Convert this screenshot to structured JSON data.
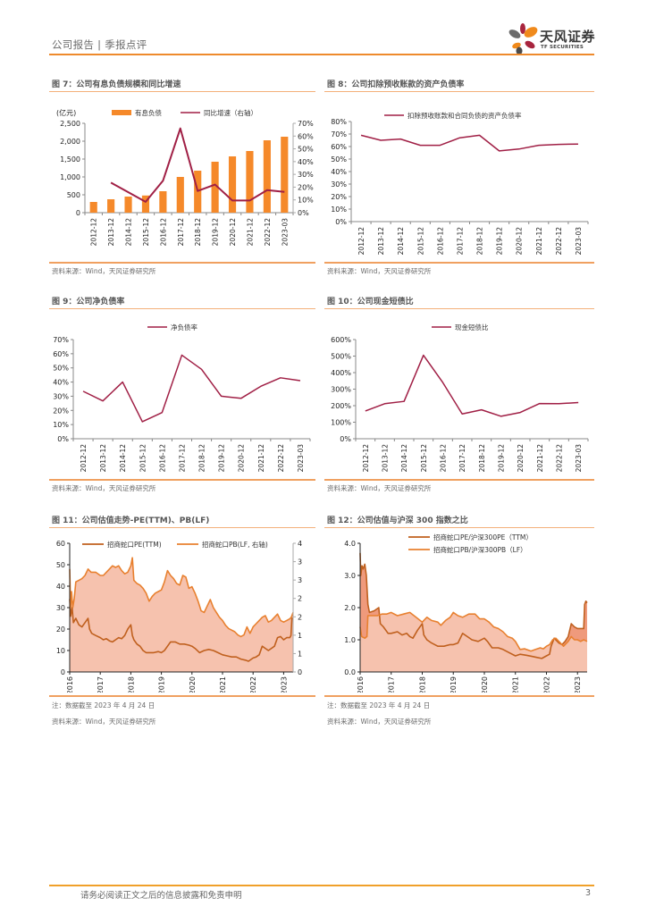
{
  "header": {
    "title": "公司报告 | 季报点评",
    "logo_cn": "天风证券",
    "logo_en": "TF SECURITIES"
  },
  "colors": {
    "accent_orange": "#ee8a2c",
    "bar_orange": "#f5892a",
    "line_crimson": "#a01f45",
    "pe_brown": "#c0601e",
    "pb_orange": "#e8802f",
    "fill_pink": "#f6c2ae",
    "fill_pink_dark": "#ef9a7c"
  },
  "figures": [
    {
      "id": "fig7",
      "title": "图 7：公司有息负债规模和同比增速",
      "source": "资料来源：Wind，天风证券研究所"
    },
    {
      "id": "fig8",
      "title": "图 8：公司扣除预收账款的资产负债率",
      "source": "资料来源：Wind，天风证券研究所"
    },
    {
      "id": "fig9",
      "title": "图 9：公司净负债率",
      "source": "资料来源：Wind，天风证券研究所"
    },
    {
      "id": "fig10",
      "title": "图 10：公司现金短债比",
      "source": "资料来源：Wind，天风证券研究所"
    },
    {
      "id": "fig11",
      "title": "图 11：公司估值走势-PE(TTM)、PB(LF)",
      "note": "注：数据截至 2023 年 4 月 24 日",
      "source": "资料来源：Wind，天风证券研究所"
    },
    {
      "id": "fig12",
      "title": "图 12：公司估值与沪深 300 指数之比",
      "note": "注：数据截至 2023 年 4 月 24 日",
      "source": "资料来源：Wind，天风证券研究所"
    }
  ],
  "footer": {
    "disclaimer": "请务必阅读正文之后的信息披露和免责申明",
    "page_number": "3"
  },
  "chart_data": [
    {
      "id": "fig7",
      "type": "bar",
      "title": "公司有息负债规模和同比增速",
      "ylabel": "(亿元)",
      "categories": [
        "2012-12",
        "2013-12",
        "2014-12",
        "2015-12",
        "2016-12",
        "2017-12",
        "2018-12",
        "2019-12",
        "2020-12",
        "2021-12",
        "2022-12",
        "2023-03"
      ],
      "series": [
        {
          "name": "有息负债",
          "type": "bar",
          "axis": "left",
          "values": [
            300,
            375,
            450,
            480,
            600,
            1000,
            1175,
            1425,
            1575,
            1725,
            2025,
            2125
          ]
        },
        {
          "name": "同比增速（右轴）",
          "type": "line",
          "axis": "right",
          "values": [
            null,
            23.5,
            16,
            8.5,
            25,
            66,
            17,
            22,
            9.5,
            9.5,
            17.7,
            16.3
          ]
        }
      ],
      "ylim": [
        0,
        2500
      ],
      "yticks": [
        "0",
        "500",
        "1,000",
        "1,500",
        "2,000",
        "2,500"
      ],
      "y2lim": [
        0,
        70
      ],
      "y2ticks": [
        "0%",
        "10%",
        "20%",
        "30%",
        "40%",
        "50%",
        "60%",
        "70%"
      ],
      "legend": "top"
    },
    {
      "id": "fig8",
      "type": "line",
      "title": "公司扣除预收账款的资产负债率",
      "categories": [
        "2012-12",
        "2013-12",
        "2014-12",
        "2015-12",
        "2016-12",
        "2017-12",
        "2018-12",
        "2019-12",
        "2020-12",
        "2021-12",
        "2022-12",
        "2023-03"
      ],
      "series": [
        {
          "name": "扣除预收账款和合同负债的资产负债率",
          "values": [
            69,
            65,
            66,
            61,
            61,
            67,
            69,
            56.5,
            58,
            61,
            61.7,
            62
          ]
        }
      ],
      "ylim": [
        0,
        80
      ],
      "yticks": [
        "0%",
        "10%",
        "20%",
        "30%",
        "40%",
        "50%",
        "60%",
        "70%",
        "80%"
      ],
      "legend": "top"
    },
    {
      "id": "fig9",
      "type": "line",
      "title": "公司净负债率",
      "categories": [
        "2012-12",
        "2013-12",
        "2014-12",
        "2015-12",
        "2016-12",
        "2017-12",
        "2018-12",
        "2019-12",
        "2020-12",
        "2021-12",
        "2022-12",
        "2023-03"
      ],
      "series": [
        {
          "name": "净负债率",
          "values": [
            33.5,
            26.7,
            40,
            12,
            18.5,
            59,
            49,
            30,
            28.5,
            37,
            43,
            41
          ]
        }
      ],
      "ylim": [
        0,
        70
      ],
      "yticks": [
        "0%",
        "10%",
        "20%",
        "30%",
        "40%",
        "50%",
        "60%",
        "70%"
      ],
      "legend": "top"
    },
    {
      "id": "fig10",
      "type": "line",
      "title": "公司现金短债比",
      "categories": [
        "2012-12",
        "2013-12",
        "2014-12",
        "2015-12",
        "2016-12",
        "2017-12",
        "2018-12",
        "2019-12",
        "2020-12",
        "2021-12",
        "2022-12",
        "2023-03"
      ],
      "series": [
        {
          "name": "现金短债比",
          "values": [
            168,
            212,
            226,
            505,
            340,
            150,
            175,
            136,
            159,
            213,
            212,
            219
          ]
        }
      ],
      "ylim": [
        0,
        600
      ],
      "yticks": [
        "0%",
        "100%",
        "200%",
        "300%",
        "400%",
        "500%",
        "600%"
      ],
      "legend": "top"
    },
    {
      "id": "fig11",
      "type": "area",
      "title": "公司估值走势-PE(TTM)、PB(LF)",
      "xticks": [
        "2016",
        "2017",
        "2018",
        "2019",
        "2020",
        "2021",
        "2022",
        "2023"
      ],
      "xlim": [
        2016.0,
        2023.31
      ],
      "ylim": [
        0,
        60
      ],
      "yticks": [
        "0",
        "10",
        "20",
        "30",
        "40",
        "50",
        "60"
      ],
      "y2lim": [
        0,
        4
      ],
      "y2ticks": [
        "0",
        "1",
        "1",
        "2",
        "2",
        "3",
        "3",
        "4"
      ],
      "series": [
        {
          "name": "招商蛇口PE(TTM)",
          "axis": "left",
          "x": [
            2016.0,
            2016.03,
            2016.08,
            2016.12,
            2016.2,
            2016.3,
            2016.4,
            2016.5,
            2016.6,
            2016.65,
            2016.72,
            2016.85,
            2017.0,
            2017.1,
            2017.2,
            2017.3,
            2017.4,
            2017.5,
            2017.6,
            2017.7,
            2017.8,
            2017.9,
            2018.0,
            2018.05,
            2018.1,
            2018.2,
            2018.3,
            2018.4,
            2018.5,
            2018.6,
            2018.75,
            2018.9,
            2019.0,
            2019.1,
            2019.2,
            2019.3,
            2019.45,
            2019.6,
            2019.75,
            2019.9,
            2020.0,
            2020.1,
            2020.25,
            2020.4,
            2020.55,
            2020.7,
            2020.85,
            2021.0,
            2021.15,
            2021.3,
            2021.45,
            2021.6,
            2021.75,
            2021.85,
            2022.0,
            2022.1,
            2022.2,
            2022.3,
            2022.4,
            2022.5,
            2022.6,
            2022.7,
            2022.8,
            2022.9,
            2023.0,
            2023.1,
            2023.2,
            2023.24,
            2023.27,
            2023.31
          ],
          "values": [
            34,
            26,
            30,
            23,
            25,
            22,
            21,
            23,
            25,
            20,
            18,
            17,
            16,
            15,
            15.5,
            14.5,
            14,
            15,
            16,
            15.5,
            17,
            20,
            22,
            17,
            15,
            13,
            12,
            10,
            9,
            9,
            9,
            9.5,
            9,
            10,
            12,
            14,
            14,
            13,
            13,
            12.5,
            12,
            11,
            9,
            10,
            10.5,
            10,
            9,
            8,
            7.5,
            7,
            7,
            6,
            5.5,
            5,
            6.5,
            7,
            8,
            12,
            11,
            10,
            11,
            12,
            16,
            16.5,
            15,
            16,
            16,
            17,
            25,
            25
          ]
        },
        {
          "name": "招商蛇口PB(LF, 右轴)",
          "axis": "right",
          "x": [
            2016.0,
            2016.03,
            2016.06,
            2016.1,
            2016.15,
            2016.2,
            2016.3,
            2016.4,
            2016.5,
            2016.6,
            2016.7,
            2016.85,
            2017.0,
            2017.1,
            2017.2,
            2017.3,
            2017.4,
            2017.5,
            2017.6,
            2017.7,
            2017.8,
            2017.9,
            2018.0,
            2018.05,
            2018.1,
            2018.2,
            2018.3,
            2018.4,
            2018.5,
            2018.6,
            2018.7,
            2018.8,
            2018.9,
            2019.0,
            2019.1,
            2019.2,
            2019.3,
            2019.4,
            2019.5,
            2019.6,
            2019.7,
            2019.8,
            2019.9,
            2020.0,
            2020.1,
            2020.2,
            2020.3,
            2020.4,
            2020.5,
            2020.6,
            2020.7,
            2020.8,
            2020.9,
            2021.0,
            2021.1,
            2021.2,
            2021.3,
            2021.4,
            2021.5,
            2021.6,
            2021.7,
            2021.8,
            2021.9,
            2022.0,
            2022.1,
            2022.2,
            2022.3,
            2022.4,
            2022.5,
            2022.6,
            2022.7,
            2022.8,
            2022.9,
            2023.0,
            2023.1,
            2023.2,
            2023.25,
            2023.31
          ],
          "values": [
            3.2,
            2.0,
            2.5,
            2.0,
            2.3,
            2.8,
            2.85,
            2.9,
            3.0,
            3.2,
            3.1,
            3.1,
            3.0,
            3.0,
            3.1,
            3.2,
            3.3,
            3.25,
            3.3,
            3.15,
            3.05,
            3.1,
            3.3,
            3.55,
            2.85,
            2.75,
            2.7,
            2.6,
            2.45,
            2.2,
            2.35,
            2.45,
            2.5,
            2.55,
            2.8,
            3.15,
            3.0,
            2.9,
            2.75,
            2.7,
            3.0,
            2.95,
            2.6,
            2.65,
            2.45,
            2.2,
            1.9,
            1.85,
            2.05,
            2.25,
            2.0,
            1.85,
            1.7,
            1.6,
            1.45,
            1.35,
            1.3,
            1.25,
            1.15,
            1.1,
            1.15,
            1.4,
            1.2,
            1.4,
            1.5,
            1.6,
            1.7,
            1.75,
            1.55,
            1.6,
            1.7,
            1.8,
            1.6,
            1.55,
            1.6,
            1.65,
            1.7,
            1.85
          ]
        }
      ],
      "legend": "top"
    },
    {
      "id": "fig12",
      "type": "area",
      "title": "公司估值与沪深 300 指数之比",
      "xticks": [
        "2016",
        "2017",
        "2018",
        "2019",
        "2020",
        "2021",
        "2022",
        "2023"
      ],
      "xlim": [
        2016.0,
        2023.31
      ],
      "ylim": [
        0,
        4
      ],
      "yticks": [
        "0.0",
        "1.0",
        "2.0",
        "3.0",
        "4.0"
      ],
      "series": [
        {
          "name": "招商蛇口PE/沪深300PE（TTM）",
          "x": [
            2016.0,
            2016.02,
            2016.06,
            2016.1,
            2016.15,
            2016.2,
            2016.25,
            2016.3,
            2016.45,
            2016.6,
            2016.65,
            2016.75,
            2016.9,
            2017.0,
            2017.2,
            2017.35,
            2017.5,
            2017.6,
            2017.7,
            2017.85,
            2018.0,
            2018.05,
            2018.15,
            2018.3,
            2018.5,
            2018.7,
            2018.9,
            2019.0,
            2019.15,
            2019.3,
            2019.45,
            2019.6,
            2019.8,
            2020.0,
            2020.1,
            2020.25,
            2020.45,
            2020.6,
            2020.8,
            2021.0,
            2021.15,
            2021.35,
            2021.55,
            2021.7,
            2021.85,
            2022.0,
            2022.1,
            2022.15,
            2022.25,
            2022.4,
            2022.5,
            2022.6,
            2022.7,
            2022.8,
            2022.9,
            2023.0,
            2023.1,
            2023.2,
            2023.23,
            2023.27,
            2023.31
          ],
          "values": [
            3.7,
            3.0,
            3.3,
            3.2,
            3.35,
            3.0,
            2.1,
            1.85,
            1.9,
            2.0,
            1.5,
            1.4,
            1.2,
            1.2,
            1.25,
            1.15,
            1.2,
            1.1,
            1.05,
            1.3,
            1.5,
            1.15,
            1.0,
            0.9,
            0.8,
            0.8,
            0.85,
            0.85,
            0.9,
            1.2,
            1.1,
            1.0,
            0.95,
            1.05,
            0.95,
            0.75,
            0.75,
            0.7,
            0.6,
            0.5,
            0.55,
            0.52,
            0.48,
            0.45,
            0.42,
            0.5,
            0.55,
            0.8,
            1.05,
            0.9,
            0.85,
            0.95,
            1.1,
            1.5,
            1.4,
            1.35,
            1.35,
            1.35,
            2.1,
            2.2,
            2.15
          ]
        },
        {
          "name": "招商蛇口PB/沪深300PB（LF）",
          "x": [
            2016.0,
            2016.05,
            2016.15,
            2016.22,
            2016.25,
            2016.4,
            2016.55,
            2016.7,
            2016.85,
            2017.0,
            2017.2,
            2017.4,
            2017.6,
            2017.8,
            2018.0,
            2018.15,
            2018.3,
            2018.5,
            2018.6,
            2018.75,
            2018.9,
            2019.0,
            2019.15,
            2019.3,
            2019.5,
            2019.7,
            2019.85,
            2020.0,
            2020.15,
            2020.3,
            2020.45,
            2020.6,
            2020.75,
            2020.9,
            2021.0,
            2021.15,
            2021.3,
            2021.5,
            2021.65,
            2021.8,
            2021.9,
            2022.0,
            2022.1,
            2022.2,
            2022.3,
            2022.45,
            2022.55,
            2022.7,
            2022.8,
            2022.9,
            2023.0,
            2023.1,
            2023.2,
            2023.31
          ],
          "values": [
            1.4,
            1.1,
            1.05,
            1.1,
            1.75,
            1.75,
            1.75,
            1.8,
            1.8,
            1.85,
            1.75,
            1.8,
            1.85,
            1.7,
            1.55,
            1.7,
            1.6,
            1.55,
            1.45,
            1.6,
            1.7,
            1.85,
            1.75,
            1.7,
            1.8,
            1.8,
            1.65,
            1.65,
            1.55,
            1.4,
            1.35,
            1.25,
            1.1,
            1.05,
            0.95,
            0.7,
            0.72,
            0.65,
            0.7,
            0.75,
            0.72,
            0.8,
            0.85,
            1.0,
            1.05,
            0.9,
            0.8,
            0.95,
            1.1,
            1.0,
            1.0,
            0.95,
            1.0,
            0.95
          ]
        }
      ],
      "legend": "top"
    }
  ]
}
